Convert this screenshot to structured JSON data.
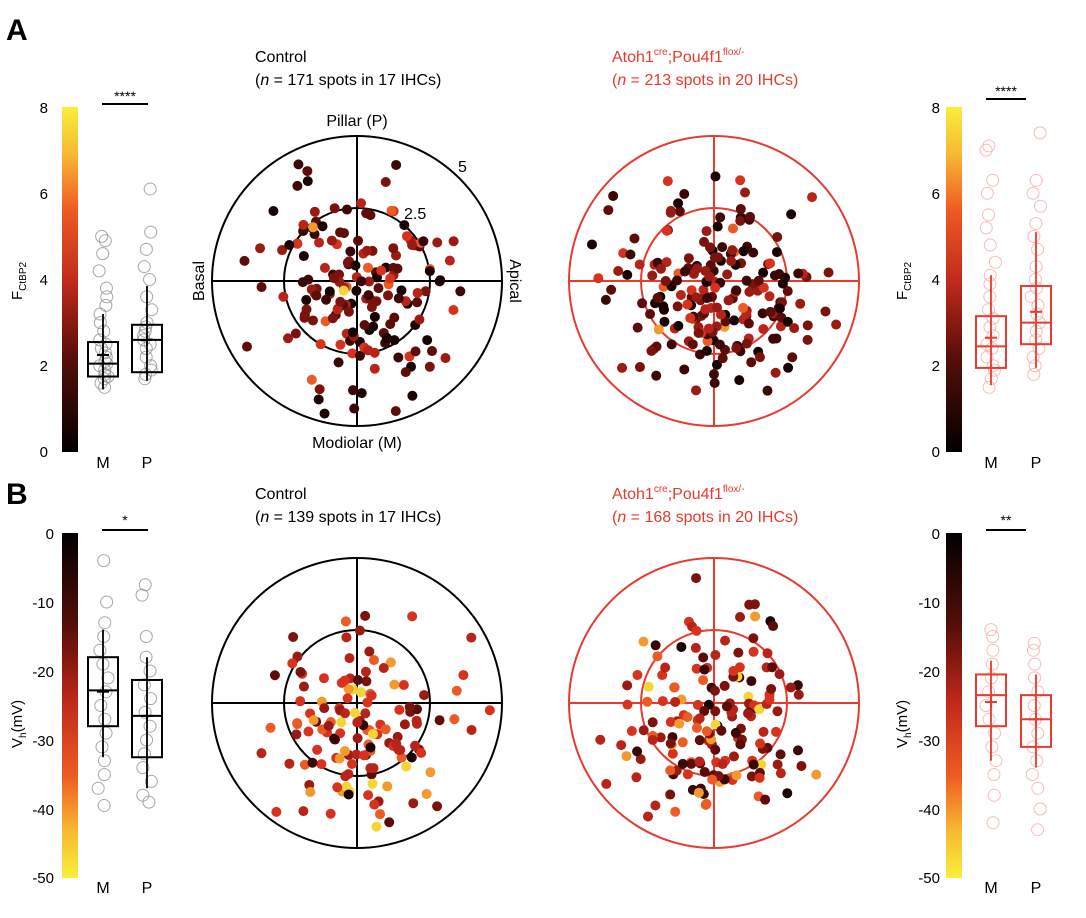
{
  "panels": [
    {
      "letter": "A",
      "control": {
        "line1": "Control",
        "line2_prefix": "(",
        "line2_italic": "n",
        "line2_rest": " = 171 spots in 17 IHCs)"
      },
      "mutant": {
        "base": "Atoh1",
        "sup1": "cre",
        "mid": ";Pou4f1",
        "sup2": "flox/-",
        "line2_prefix": "(",
        "line2_italic": "n",
        "line2_rest": " = 213 spots in 20 IHCs)"
      },
      "polar_labels": {
        "top": "Pillar (P)",
        "bottom": "Modiolar (M)",
        "left": "Basal",
        "right": "Apical",
        "outer": "5",
        "inner": "2.5"
      },
      "cbar": {
        "ticks": [
          "8",
          "6",
          "4",
          "2",
          "0"
        ],
        "label_main": "F",
        "label_sub": "CtBP2",
        "direction": "yellow-top"
      },
      "left_box": {
        "sig": "****",
        "categories": [
          "M",
          "P"
        ],
        "ylim": [
          0,
          8
        ],
        "M": {
          "q1": 1.75,
          "median": 2.05,
          "q3": 2.55,
          "whisker_low": 1.45,
          "whisker_high": 3.2,
          "mean": 2.25
        },
        "P": {
          "q1": 1.85,
          "median": 2.6,
          "q3": 2.95,
          "whisker_low": 1.65,
          "whisker_high": 3.85,
          "mean": 2.6
        }
      },
      "right_box": {
        "sig": "****",
        "categories": [
          "M",
          "P"
        ],
        "ylim": [
          0,
          8
        ],
        "M": {
          "q1": 1.95,
          "median": 2.45,
          "q3": 3.15,
          "whisker_low": 1.55,
          "whisker_high": 4.1,
          "mean": 2.65
        },
        "P": {
          "q1": 2.5,
          "median": 3.0,
          "q3": 3.85,
          "whisker_low": 1.95,
          "whisker_high": 5.1,
          "mean": 3.25
        }
      }
    },
    {
      "letter": "B",
      "control": {
        "line1": "Control",
        "line2_prefix": "(",
        "line2_italic": "n",
        "line2_rest": " = 139 spots in 17 IHCs)"
      },
      "mutant": {
        "base": "Atoh1",
        "sup1": "cre",
        "mid": ";Pou4f1",
        "sup2": "flox/-",
        "line2_prefix": "(",
        "line2_italic": "n",
        "line2_rest": " = 168 spots in 20 IHCs)"
      },
      "cbar": {
        "ticks": [
          "0",
          "-10",
          "-20",
          "-30",
          "-40",
          "-50"
        ],
        "label_main": "V",
        "label_sub": "h",
        "label_unit": "(mV)",
        "direction": "yellow-bottom"
      },
      "left_box": {
        "sig": "*",
        "categories": [
          "M",
          "P"
        ],
        "ylim": [
          -50,
          0
        ],
        "M": {
          "q1": -28,
          "median": -22.8,
          "q3": -18,
          "whisker_low": -32.5,
          "whisker_high": -14,
          "mean": -23
        },
        "P": {
          "q1": -32.5,
          "median": -26.5,
          "q3": -21.3,
          "whisker_low": -37,
          "whisker_high": -18,
          "mean": -26.5
        }
      },
      "right_box": {
        "sig": "**",
        "categories": [
          "M",
          "P"
        ],
        "ylim": [
          -50,
          0
        ],
        "M": {
          "q1": -28,
          "median": -23.5,
          "q3": -20.5,
          "whisker_low": -33,
          "whisker_high": -18.5,
          "mean": -24.5
        },
        "P": {
          "q1": -31,
          "median": -27,
          "q3": -23.5,
          "whisker_low": -34,
          "whisker_high": -20.5,
          "mean": -27
        }
      }
    }
  ],
  "colors": {
    "control": "#000000",
    "mutant": "#e63b2e",
    "marker_fill_light": "#f3a59b"
  },
  "chart_data": [
    {
      "type": "box",
      "panel": "A-left",
      "categories": [
        "M",
        "P"
      ],
      "ylabel": "F CtBP2",
      "ylim": [
        0,
        8
      ],
      "series": [
        {
          "values_M_sample": [
            1.5,
            1.6,
            1.7,
            1.75,
            1.8,
            1.9,
            2.0,
            2.05,
            2.1,
            2.2,
            2.3,
            2.4,
            2.5,
            2.6,
            2.8,
            3.0,
            3.2,
            3.4,
            3.6,
            3.8,
            4.2,
            4.6,
            4.9,
            5.0
          ],
          "values_P_sample": [
            1.7,
            1.8,
            1.9,
            2.0,
            2.2,
            2.4,
            2.5,
            2.6,
            2.7,
            2.8,
            2.9,
            3.0,
            3.3,
            3.6,
            4.0,
            4.3,
            4.7,
            5.1,
            6.1
          ]
        }
      ]
    },
    {
      "type": "box",
      "panel": "A-right",
      "categories": [
        "M",
        "P"
      ],
      "ylabel": "F CtBP2",
      "ylim": [
        0,
        8
      ],
      "series": [
        {
          "values_M_sample": [
            1.5,
            1.7,
            1.9,
            2.0,
            2.2,
            2.4,
            2.5,
            2.7,
            2.9,
            3.1,
            3.3,
            3.6,
            3.9,
            4.1,
            4.4,
            4.8,
            5.2,
            5.5,
            6.0,
            6.3,
            7.0,
            7.1
          ],
          "values_P_sample": [
            1.8,
            2.0,
            2.2,
            2.4,
            2.6,
            2.8,
            3.0,
            3.2,
            3.4,
            3.6,
            3.8,
            4.0,
            4.3,
            4.7,
            5.0,
            5.3,
            5.7,
            6.0,
            6.3,
            7.4
          ]
        }
      ]
    },
    {
      "type": "box",
      "panel": "B-left",
      "categories": [
        "M",
        "P"
      ],
      "ylabel": "Vh(mV)",
      "ylim": [
        -50,
        0
      ],
      "series": [
        {
          "values_M_sample": [
            -39.5,
            -37,
            -35,
            -33,
            -31,
            -29,
            -27,
            -25,
            -23,
            -21,
            -19,
            -17,
            -15,
            -13,
            -10,
            -4
          ],
          "values_P_sample": [
            -39,
            -38,
            -36,
            -34,
            -32,
            -30,
            -28,
            -26,
            -24,
            -22,
            -20,
            -18,
            -15,
            -9,
            -7.5
          ]
        }
      ]
    },
    {
      "type": "box",
      "panel": "B-right",
      "categories": [
        "M",
        "P"
      ],
      "ylabel": "Vh(mV)",
      "ylim": [
        -50,
        0
      ],
      "series": [
        {
          "values_M_sample": [
            -42,
            -38,
            -35,
            -33,
            -31,
            -29,
            -27,
            -25,
            -23,
            -21,
            -19,
            -17,
            -15,
            -14
          ],
          "values_P_sample": [
            -43,
            -40,
            -37,
            -35,
            -33,
            -31,
            -29,
            -27,
            -25,
            -23,
            -21,
            -19,
            -17,
            -16
          ]
        }
      ]
    }
  ]
}
